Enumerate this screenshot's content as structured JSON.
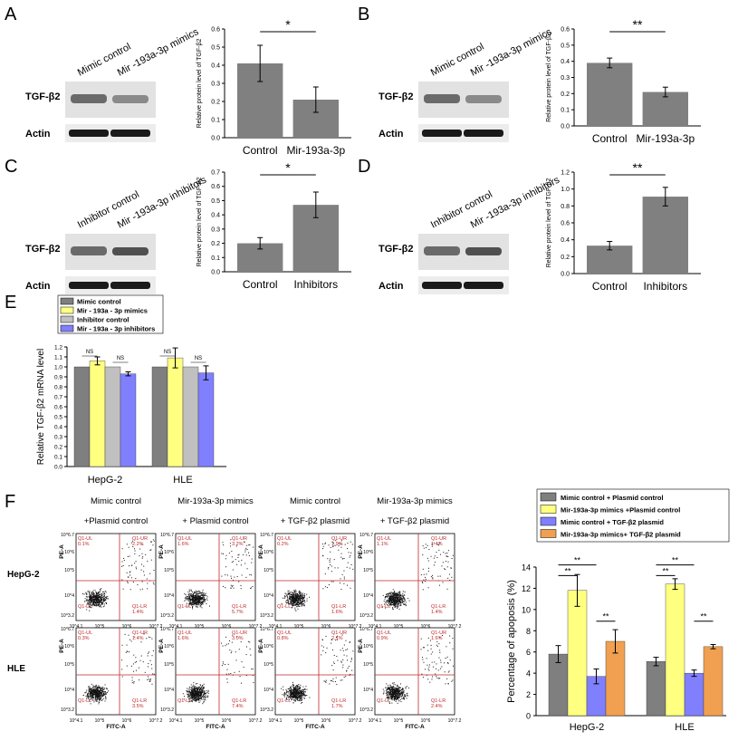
{
  "panels": {
    "A": {
      "letter": "A",
      "lane_labels": [
        "Mimic control",
        "Mir -193a-3p mimics"
      ],
      "blot_labels": [
        "TGF-β2",
        "Actin"
      ],
      "ylabel": "Relative protein level of TGF-β2",
      "ticks": [
        "0.0",
        "0.1",
        "0.2",
        "0.3",
        "0.4",
        "0.5",
        "0.6"
      ],
      "sig": "*"
    },
    "B": {
      "letter": "B",
      "lane_labels": [
        "Mimic control",
        "Mir -193a-3p mimics"
      ],
      "blot_labels": [
        "TGF-β2",
        "Actin"
      ],
      "ylabel": "Relative protein level of TGF-β2",
      "ticks": [
        "0.0",
        "0.1",
        "0.2",
        "0.3",
        "0.4",
        "0.5",
        "0.6"
      ],
      "sig": "**"
    },
    "C": {
      "letter": "C",
      "lane_labels": [
        "Inhibitor control",
        "Mir -193a-3p inhibitors"
      ],
      "blot_labels": [
        "TGF-β2",
        "Actin"
      ],
      "ylabel": "Relative protein level of TGF-β2",
      "ticks": [
        "0.0",
        "0.1",
        "0.2",
        "0.3",
        "0.4",
        "0.5",
        "0.6",
        "0.7"
      ],
      "sig": "*"
    },
    "D": {
      "letter": "D",
      "lane_labels": [
        "Inhibitor control",
        "Mir -193a-3p inhibitors"
      ],
      "blot_labels": [
        "TGF-β2",
        "Actin"
      ],
      "ylabel": "Relative protein level of TGF-β2",
      "ticks": [
        "0.0",
        "0.2",
        "0.4",
        "0.6",
        "0.8",
        "1.0",
        "1.2"
      ],
      "sig": "**"
    },
    "E": {
      "letter": "E",
      "ylabel": "Relative TGF-β2  mRNA level",
      "ticks": [
        "0.0",
        "0.1",
        "0.2",
        "0.3",
        "0.4",
        "0.5",
        "0.6",
        "0.7",
        "0.8",
        "0.9",
        "1.0",
        "1.1",
        "1.2"
      ],
      "ns": "NS"
    },
    "F": {
      "letter": "F",
      "col_titles": [
        [
          "Mimic control",
          "+Plasmid control"
        ],
        [
          "Mir-193a-3p mimics",
          "+ Plasmid control"
        ],
        [
          "Mimic control",
          "+ TGF-β2 plasmid"
        ],
        [
          "Mir-193a-3p mimics",
          "+ TGF-β2 plasmid"
        ]
      ],
      "row_labels": [
        "HepG-2",
        "HLE"
      ],
      "axis_x": "FITC-A",
      "axis_y": "PE-A",
      "quad_names": [
        "Q1-UL",
        "Q1-UR",
        "Q1-LL",
        "Q1-LR"
      ],
      "x_ticks": [
        "10^4.1",
        "10^5",
        "10^6",
        "10^7.2"
      ],
      "y_ticks": [
        "10^3.2",
        "10^4",
        "10^5",
        "10^6",
        "10^6.7"
      ],
      "quad_values": [
        [
          [
            "0.1%",
            "2.2%",
            "",
            "1.4%"
          ],
          [
            "1.6%",
            "3.2%",
            "",
            "5.7%"
          ],
          [
            "0.2%",
            "1.9%",
            "",
            "1.6%"
          ],
          [
            "1.1%",
            "1.4%",
            "",
            "1.4%"
          ]
        ],
        [
          [
            "0.3%",
            "1.4%",
            "",
            "3.5%"
          ],
          [
            "1.6%",
            "3.0%",
            "",
            "7.4%"
          ],
          [
            "0.8%",
            "2.1%",
            "",
            "1.7%"
          ],
          [
            "0.9%",
            "1.6%",
            "",
            "2.4%"
          ]
        ]
      ],
      "ylabel": "Percentage of apoposis (%)",
      "ticks": [
        "0",
        "2",
        "4",
        "6",
        "8",
        "10",
        "12",
        "14"
      ],
      "sig": "**"
    }
  },
  "chart_data": [
    {
      "id": "A",
      "type": "bar",
      "categories": [
        "Control",
        "Mir-193a-3p"
      ],
      "values": [
        0.41,
        0.21
      ],
      "errors": [
        0.1,
        0.07
      ],
      "ylim": [
        0,
        0.6
      ],
      "ylabel": "Relative protein level of TGF-β2",
      "significance": "*",
      "color": "#808080"
    },
    {
      "id": "B",
      "type": "bar",
      "categories": [
        "Control",
        "Mir-193a-3p"
      ],
      "values": [
        0.39,
        0.21
      ],
      "errors": [
        0.03,
        0.03
      ],
      "ylim": [
        0,
        0.6
      ],
      "ylabel": "Relative protein level of TGF-β2",
      "significance": "**",
      "color": "#808080"
    },
    {
      "id": "C",
      "type": "bar",
      "categories": [
        "Control",
        "Inhibitors"
      ],
      "values": [
        0.2,
        0.47
      ],
      "errors": [
        0.04,
        0.09
      ],
      "ylim": [
        0,
        0.7
      ],
      "ylabel": "Relative protein level of TGF-β2",
      "significance": "*",
      "color": "#808080"
    },
    {
      "id": "D",
      "type": "bar",
      "categories": [
        "Control",
        "Inhibitors"
      ],
      "values": [
        0.33,
        0.91
      ],
      "errors": [
        0.05,
        0.11
      ],
      "ylim": [
        0,
        1.2
      ],
      "ylabel": "Relative protein level of TGF-β2",
      "significance": "**",
      "color": "#808080"
    },
    {
      "id": "E",
      "type": "bar",
      "categories": [
        "HepG-2",
        "HLE"
      ],
      "ylim": [
        0,
        1.2
      ],
      "ylabel": "Relative TGF-β2  mRNA level",
      "series": [
        {
          "name": "Mimic control",
          "values": [
            1.0,
            1.0
          ],
          "errors": [
            0,
            0
          ],
          "color": "#7f7f7f"
        },
        {
          "name": "Mir - 193a - 3p mimics",
          "values": [
            1.06,
            1.09
          ],
          "errors": [
            0.04,
            0.1
          ],
          "color": "#ffff80"
        },
        {
          "name": "Inhibitor control",
          "values": [
            1.0,
            1.0
          ],
          "errors": [
            0,
            0
          ],
          "color": "#c0c0c0"
        },
        {
          "name": "Mir - 193a - 3p  inhibitors",
          "values": [
            0.93,
            0.94
          ],
          "errors": [
            0.02,
            0.07
          ],
          "color": "#8080ff"
        }
      ],
      "annotations": [
        "NS",
        "NS",
        "NS",
        "NS"
      ]
    },
    {
      "id": "F",
      "type": "bar",
      "categories": [
        "HepG-2",
        "HLE"
      ],
      "ylim": [
        0,
        14
      ],
      "ylabel": "Percentage of apoposis (%)",
      "series": [
        {
          "name": "Mimic control + Plasmid control",
          "values": [
            5.8,
            5.1
          ],
          "errors": [
            0.8,
            0.4
          ],
          "color": "#7f7f7f"
        },
        {
          "name": "Mir-193a-3p mimics +Plasmid control",
          "values": [
            11.8,
            12.4
          ],
          "errors": [
            1.5,
            0.5
          ],
          "color": "#ffff80"
        },
        {
          "name": "Mimic control + TGF-β2 plasmid",
          "values": [
            3.7,
            4.0
          ],
          "errors": [
            0.7,
            0.3
          ],
          "color": "#8080ff"
        },
        {
          "name": "Mir-193a-3p mimics+ TGF-β2 plasmid",
          "values": [
            7.0,
            6.5
          ],
          "errors": [
            1.1,
            0.2
          ],
          "color": "#f0a050"
        }
      ],
      "annotations": [
        "**",
        "**",
        "**"
      ]
    }
  ]
}
